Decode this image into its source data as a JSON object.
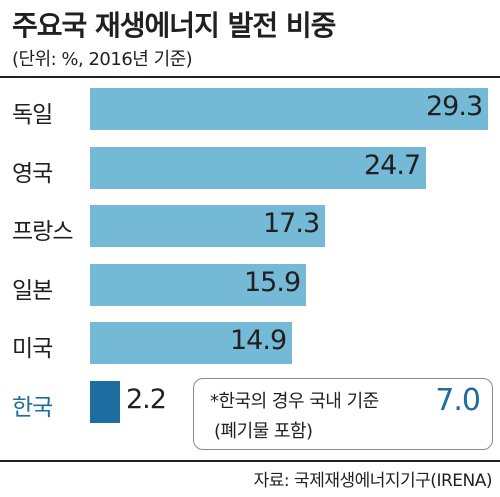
{
  "chart_data": {
    "type": "bar",
    "title": "주요국 재생에너지 발전 비중",
    "subtitle": "(단위: %, 2016년 기준)",
    "categories": [
      "독일",
      "영국",
      "프랑스",
      "일본",
      "미국",
      "한국"
    ],
    "values": [
      29.3,
      24.7,
      17.3,
      15.9,
      14.9,
      2.2
    ],
    "value_labels": [
      "29.3",
      "24.7",
      "17.3",
      "15.9",
      "14.9",
      "2.2"
    ],
    "highlight_category": "한국",
    "orientation": "horizontal",
    "xlim": [
      0,
      29.3
    ],
    "grid": false,
    "legend": "none"
  },
  "colors": {
    "bar": "#74b9d6",
    "highlight_bar": "#1d6da0",
    "highlight_text": "#1d6da0",
    "text": "#231f20"
  },
  "note": {
    "text": "*한국의 경우 국내 기준",
    "value": "7.0",
    "subtext": "(폐기물 포함)"
  },
  "source": "자료: 국제재생에너지기구(IRENA)"
}
